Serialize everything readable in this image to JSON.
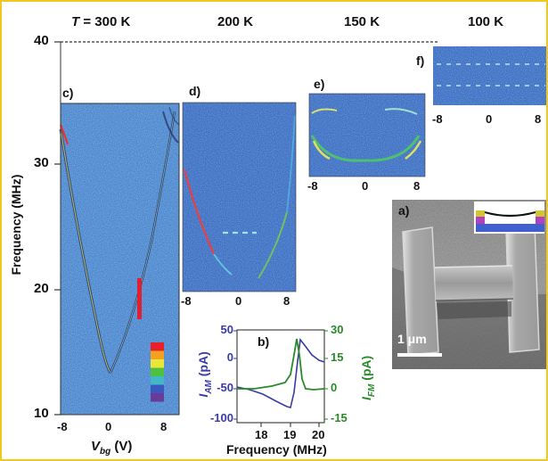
{
  "figure": {
    "temperatures": {
      "t300": "T = 300 K",
      "t200": "200 K",
      "t150": "150 K",
      "t100": "100 K"
    },
    "y_axis": {
      "label": "Frequency (MHz)",
      "ticks": [
        {
          "value": 40,
          "text": "40"
        },
        {
          "value": 30,
          "text": "30"
        },
        {
          "value": 20,
          "text": "20"
        },
        {
          "value": 10,
          "text": "10"
        }
      ]
    },
    "x_axis_c": {
      "label_base": "V",
      "label_sub": "bg",
      "label_unit": " (V)",
      "ticks": [
        "-8",
        "0",
        "8"
      ]
    },
    "panels": {
      "a": "a)",
      "b": "b)",
      "c": "c)",
      "d": "d)",
      "e": "e)",
      "f": "f)"
    },
    "panel_d_ticks": [
      "-8",
      "0",
      "8"
    ],
    "panel_e_ticks": [
      "-8",
      "0",
      "8"
    ],
    "panel_f_ticks": [
      "-8",
      "0",
      "8"
    ],
    "panel_a": {
      "scale_bar": "1 μm",
      "inset_colors": [
        "#d4c430",
        "#b040c0",
        "#4060d0",
        "#ffffff"
      ]
    },
    "panel_b": {
      "x_label": "Frequency (MHz)",
      "x_ticks": [
        "18",
        "19",
        "20"
      ],
      "left_axis_base": "I",
      "left_axis_sub": "AM",
      "left_axis_unit": " (pA)",
      "left_ticks": [
        "50",
        "0",
        "-50",
        "-100"
      ],
      "right_axis_base": "I",
      "right_axis_sub": "FM",
      "right_axis_unit": " (pA)",
      "right_ticks": [
        "30",
        "15",
        "0",
        "-15"
      ],
      "am_color": "#3a3aa8",
      "fm_color": "#2a8a2a"
    },
    "colorbar": [
      "#e8202a",
      "#f5a020",
      "#e8e838",
      "#50c040",
      "#40b8c8",
      "#3a58c0",
      "#6a3a98"
    ],
    "colors": {
      "map_background": "#3f78c8",
      "map_background_dark": "#2a55b0",
      "frame": "#f0c820"
    }
  }
}
